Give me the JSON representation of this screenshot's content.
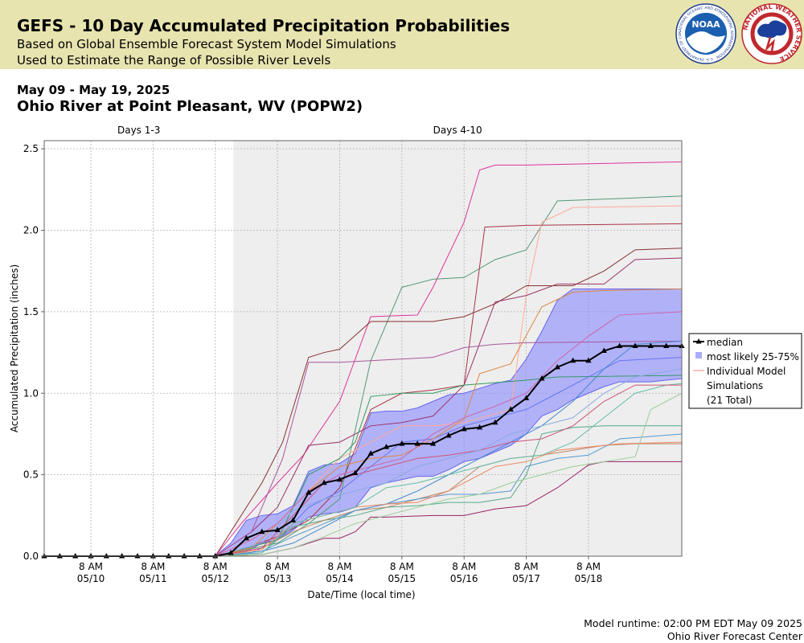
{
  "header": {
    "title": "GEFS - 10 Day Accumulated Precipitation Probabilities",
    "subtitle_1": "Based on Global Ensemble Forecast System Model Simulations",
    "subtitle_2": "Used to Estimate the Range of Possible River Levels",
    "noaa_logo_text": "NOAA",
    "noaa_ring_text": "NATIONAL OCEANIC AND ATMOSPHERIC ADMINISTRATION · U.S. DEPARTMENT OF COMMERCE",
    "nws_ring_text": "NATIONAL WEATHER SERVICE"
  },
  "date_range": "May 09 - May 19, 2025",
  "station": "Ohio River at Point Pleasant, WV (POPW2)",
  "footer": {
    "runtime": "Model runtime: 02:00 PM EDT May 09 2025",
    "center": "Ohio River Forecast Center"
  },
  "colors": {
    "banner": "#e8e4b0",
    "iqr_fill": "#8888ff",
    "iqr_stroke": "#6666ee",
    "median": "#000000",
    "days_4_10_shade": "#eeeeee"
  },
  "chart_data": {
    "type": "line",
    "xlabel": "Date/Time (local time)",
    "ylabel": "Accumulated Precipitation (inches)",
    "ylim": [
      0,
      2.55
    ],
    "yticks": [
      "0.0",
      "0.5",
      "1.0",
      "1.5",
      "2.0",
      "2.5"
    ],
    "xlim_hours": [
      0,
      246
    ],
    "xticks": [
      {
        "hour": 18,
        "label": [
          "8 AM",
          "05/10"
        ]
      },
      {
        "hour": 42,
        "label": [
          "8 AM",
          "05/11"
        ]
      },
      {
        "hour": 66,
        "label": [
          "8 AM",
          "05/12"
        ]
      },
      {
        "hour": 90,
        "label": [
          "8 AM",
          "05/13"
        ]
      },
      {
        "hour": 114,
        "label": [
          "8 AM",
          "05/14"
        ]
      },
      {
        "hour": 138,
        "label": [
          "8 AM",
          "05/15"
        ]
      },
      {
        "hour": 162,
        "label": [
          "8 AM",
          "05/16"
        ]
      },
      {
        "hour": 186,
        "label": [
          "8 AM",
          "05/17"
        ]
      },
      {
        "hour": 210,
        "label": [
          "8 AM",
          "05/18"
        ]
      }
    ],
    "periods": [
      {
        "label": "Days 1-3",
        "start_hour": 0,
        "end_hour": 73
      },
      {
        "label": "Days 4-10",
        "start_hour": 73,
        "end_hour": 246
      }
    ],
    "grid": true,
    "legend_position": "right",
    "legend": [
      {
        "key": "median",
        "label": "median"
      },
      {
        "key": "iqr",
        "label": "most likely 25-75%"
      },
      {
        "key": "members",
        "label": [
          "Individual Model",
          "Simulations",
          "(21 Total)"
        ]
      }
    ],
    "median": {
      "name": "median",
      "x": [
        0,
        6,
        12,
        18,
        24,
        30,
        36,
        42,
        48,
        54,
        60,
        66,
        72,
        78,
        84,
        90,
        96,
        102,
        108,
        114,
        120,
        126,
        132,
        138,
        144,
        150,
        156,
        162,
        168,
        174,
        180,
        186,
        192,
        198,
        204,
        210,
        216,
        222,
        228,
        234,
        240,
        246
      ],
      "y": [
        0,
        0,
        0,
        0,
        0,
        0,
        0,
        0,
        0,
        0,
        0,
        0,
        0.02,
        0.11,
        0.15,
        0.16,
        0.22,
        0.39,
        0.45,
        0.47,
        0.51,
        0.63,
        0.67,
        0.69,
        0.69,
        0.69,
        0.74,
        0.78,
        0.79,
        0.82,
        0.9,
        0.97,
        1.09,
        1.16,
        1.2,
        1.2,
        1.26,
        1.29,
        1.29,
        1.29,
        1.29,
        1.29
      ]
    },
    "iqr_band": {
      "name": "most likely 25-75%",
      "x": [
        66,
        72,
        78,
        84,
        90,
        96,
        102,
        108,
        114,
        120,
        126,
        132,
        138,
        144,
        150,
        156,
        162,
        168,
        174,
        180,
        186,
        192,
        198,
        204,
        210,
        216,
        222,
        228,
        234,
        240,
        246
      ],
      "low": [
        0,
        0,
        0.03,
        0.08,
        0.1,
        0.16,
        0.24,
        0.26,
        0.27,
        0.3,
        0.42,
        0.45,
        0.47,
        0.49,
        0.49,
        0.53,
        0.58,
        0.6,
        0.64,
        0.68,
        0.75,
        0.86,
        0.9,
        0.96,
        1.0,
        1.04,
        1.07,
        1.07,
        1.07,
        1.08,
        1.09
      ],
      "high": [
        0,
        0.08,
        0.22,
        0.25,
        0.26,
        0.31,
        0.52,
        0.56,
        0.57,
        0.63,
        0.88,
        0.89,
        0.89,
        0.91,
        0.95,
        0.99,
        1.0,
        1.03,
        1.06,
        1.08,
        1.21,
        1.38,
        1.57,
        1.64,
        1.64,
        1.64,
        1.64,
        1.64,
        1.64,
        1.64,
        1.64
      ]
    },
    "members": [
      {
        "color": "#dd3399",
        "x": [
          66,
          76,
          90,
          100,
          114,
          126,
          144,
          150,
          162,
          168,
          174,
          186,
          246
        ],
        "y": [
          0,
          0.2,
          0.45,
          0.62,
          0.95,
          1.47,
          1.48,
          1.65,
          2.05,
          2.37,
          2.4,
          2.4,
          2.42
        ]
      },
      {
        "color": "#559977",
        "x": [
          66,
          78,
          90,
          102,
          114,
          126,
          138,
          150,
          162,
          174,
          186,
          198,
          246
        ],
        "y": [
          0,
          0.04,
          0.08,
          0.2,
          0.35,
          1.2,
          1.65,
          1.7,
          1.71,
          1.82,
          1.88,
          2.18,
          2.21
        ]
      },
      {
        "color": "#aa3344",
        "x": [
          66,
          78,
          90,
          102,
          114,
          126,
          138,
          150,
          162,
          170,
          186,
          246
        ],
        "y": [
          0,
          0.05,
          0.12,
          0.22,
          0.42,
          0.9,
          1.0,
          1.02,
          1.05,
          2.02,
          2.03,
          2.04
        ]
      },
      {
        "color": "#ffaa99",
        "x": [
          66,
          80,
          90,
          102,
          114,
          126,
          138,
          150,
          162,
          180,
          186,
          192,
          204,
          246
        ],
        "y": [
          0,
          0.1,
          0.2,
          0.4,
          0.6,
          0.7,
          0.8,
          0.8,
          0.82,
          0.9,
          1.6,
          2.05,
          2.14,
          2.15
        ]
      },
      {
        "color": "#883333",
        "x": [
          66,
          74,
          84,
          92,
          102,
          108,
          114,
          126,
          138,
          150,
          162,
          174,
          186,
          204,
          216,
          228,
          246
        ],
        "y": [
          0,
          0.2,
          0.45,
          0.7,
          1.22,
          1.25,
          1.27,
          1.44,
          1.44,
          1.44,
          1.47,
          1.55,
          1.66,
          1.66,
          1.75,
          1.88,
          1.89
        ]
      },
      {
        "color": "#993366",
        "x": [
          66,
          80,
          90,
          102,
          114,
          126,
          138,
          150,
          162,
          174,
          186,
          198,
          216,
          228,
          246
        ],
        "y": [
          0,
          0.15,
          0.3,
          0.68,
          0.7,
          0.8,
          0.82,
          0.86,
          1.05,
          1.56,
          1.6,
          1.67,
          1.67,
          1.82,
          1.83
        ]
      },
      {
        "color": "#aa5599",
        "x": [
          66,
          80,
          92,
          102,
          114,
          126,
          138,
          150,
          162,
          174,
          186,
          246
        ],
        "y": [
          0,
          0.15,
          0.6,
          1.19,
          1.19,
          1.2,
          1.21,
          1.22,
          1.28,
          1.3,
          1.31,
          1.32
        ]
      },
      {
        "color": "#339966",
        "x": [
          66,
          78,
          90,
          102,
          114,
          120,
          126,
          138,
          150,
          162,
          186,
          198,
          246
        ],
        "y": [
          0,
          0.05,
          0.1,
          0.5,
          0.6,
          0.7,
          0.98,
          1.0,
          1.0,
          1.05,
          1.08,
          1.1,
          1.11
        ]
      },
      {
        "color": "#6677ee",
        "x": [
          66,
          80,
          90,
          102,
          114,
          126,
          138,
          150,
          162,
          174,
          186,
          198,
          210,
          222,
          246
        ],
        "y": [
          0,
          0.02,
          0.1,
          0.3,
          0.4,
          0.55,
          0.7,
          0.72,
          0.8,
          0.85,
          0.9,
          1.0,
          1.1,
          1.2,
          1.22
        ]
      },
      {
        "color": "#4488cc",
        "x": [
          66,
          84,
          96,
          108,
          120,
          132,
          144,
          156,
          168,
          180,
          192,
          204,
          216,
          228,
          246
        ],
        "y": [
          0,
          0.03,
          0.08,
          0.18,
          0.28,
          0.32,
          0.4,
          0.5,
          0.6,
          0.7,
          0.8,
          0.95,
          1.15,
          1.3,
          1.32
        ]
      },
      {
        "color": "#dd8844",
        "x": [
          66,
          80,
          90,
          102,
          114,
          126,
          138,
          150,
          162,
          168,
          180,
          192,
          204,
          216,
          246
        ],
        "y": [
          0,
          0.05,
          0.2,
          0.4,
          0.55,
          0.6,
          0.62,
          0.72,
          0.84,
          1.12,
          1.18,
          1.53,
          1.62,
          1.63,
          1.64
        ]
      },
      {
        "color": "#cc66aa",
        "x": [
          66,
          80,
          90,
          102,
          114,
          126,
          138,
          150,
          162,
          174,
          186,
          198,
          210,
          222,
          246
        ],
        "y": [
          0,
          0.1,
          0.2,
          0.4,
          0.5,
          0.55,
          0.6,
          0.75,
          0.85,
          0.92,
          1.0,
          1.2,
          1.35,
          1.48,
          1.5
        ]
      },
      {
        "color": "#55aa88",
        "x": [
          66,
          84,
          96,
          108,
          120,
          132,
          144,
          156,
          168,
          180,
          186,
          192,
          204,
          216,
          246
        ],
        "y": [
          0,
          0.02,
          0.18,
          0.22,
          0.25,
          0.3,
          0.31,
          0.33,
          0.33,
          0.36,
          0.5,
          0.75,
          0.79,
          0.8,
          0.8
        ]
      },
      {
        "color": "#992266",
        "x": [
          66,
          84,
          96,
          108,
          114,
          120,
          126,
          132,
          150,
          162,
          174,
          186,
          198,
          210,
          216,
          246
        ],
        "y": [
          0,
          0.01,
          0.05,
          0.11,
          0.11,
          0.15,
          0.24,
          0.24,
          0.25,
          0.25,
          0.29,
          0.31,
          0.42,
          0.56,
          0.58,
          0.58
        ]
      },
      {
        "color": "#bb8866",
        "x": [
          66,
          84,
          96,
          108,
          120,
          132,
          144,
          156,
          168,
          180,
          192,
          204,
          216,
          228,
          246
        ],
        "y": [
          0,
          0.05,
          0.15,
          0.22,
          0.28,
          0.3,
          0.35,
          0.4,
          0.55,
          0.6,
          0.62,
          0.65,
          0.68,
          0.69,
          0.69
        ]
      },
      {
        "color": "#5599cc",
        "x": [
          66,
          84,
          96,
          108,
          120,
          132,
          144,
          156,
          168,
          180,
          186,
          198,
          210,
          222,
          246
        ],
        "y": [
          0,
          0.03,
          0.12,
          0.2,
          0.28,
          0.32,
          0.35,
          0.38,
          0.38,
          0.4,
          0.55,
          0.6,
          0.62,
          0.72,
          0.75
        ]
      },
      {
        "color": "#ee8866",
        "x": [
          66,
          84,
          96,
          108,
          120,
          132,
          144,
          156,
          168,
          174,
          186,
          198,
          210,
          222,
          246
        ],
        "y": [
          0,
          0.04,
          0.2,
          0.25,
          0.3,
          0.32,
          0.33,
          0.4,
          0.5,
          0.55,
          0.58,
          0.65,
          0.67,
          0.69,
          0.7
        ]
      },
      {
        "color": "#66bbaa",
        "x": [
          66,
          84,
          96,
          108,
          120,
          132,
          144,
          156,
          168,
          180,
          192,
          204,
          216,
          228,
          240,
          246
        ],
        "y": [
          0,
          0.02,
          0.2,
          0.25,
          0.3,
          0.42,
          0.45,
          0.5,
          0.55,
          0.6,
          0.62,
          0.7,
          0.85,
          1.0,
          1.05,
          1.06
        ]
      },
      {
        "color": "#cc5577",
        "x": [
          66,
          84,
          96,
          108,
          120,
          132,
          144,
          156,
          168,
          180,
          192,
          204,
          216,
          228,
          246
        ],
        "y": [
          0,
          0.05,
          0.25,
          0.45,
          0.5,
          0.55,
          0.6,
          0.62,
          0.65,
          0.7,
          0.72,
          0.8,
          0.95,
          1.05,
          1.05
        ]
      },
      {
        "color": "#88aadd",
        "x": [
          66,
          84,
          96,
          108,
          120,
          132,
          144,
          156,
          168,
          180,
          192,
          204,
          216,
          228,
          246
        ],
        "y": [
          0,
          0.08,
          0.28,
          0.35,
          0.4,
          0.45,
          0.55,
          0.6,
          0.65,
          0.75,
          0.8,
          0.85,
          1.0,
          1.1,
          1.15
        ]
      },
      {
        "color": "#99cc99",
        "x": [
          66,
          84,
          96,
          108,
          120,
          132,
          144,
          156,
          168,
          180,
          192,
          204,
          216,
          228,
          234,
          246
        ],
        "y": [
          0,
          0.01,
          0.05,
          0.12,
          0.2,
          0.25,
          0.3,
          0.35,
          0.38,
          0.45,
          0.5,
          0.55,
          0.58,
          0.61,
          0.9,
          1.0
        ]
      }
    ]
  }
}
